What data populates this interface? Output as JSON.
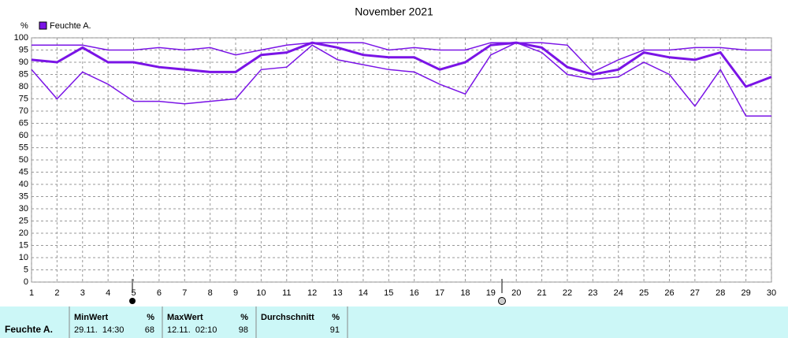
{
  "chart_data": {
    "type": "line",
    "title": "November 2021",
    "y_label": "%",
    "x": [
      1,
      2,
      3,
      4,
      5,
      6,
      7,
      8,
      9,
      10,
      11,
      12,
      13,
      14,
      15,
      16,
      17,
      18,
      19,
      20,
      21,
      22,
      23,
      24,
      25,
      26,
      27,
      28,
      29,
      30
    ],
    "xlim": [
      1,
      30
    ],
    "xticks": [
      1,
      2,
      3,
      4,
      5,
      6,
      7,
      8,
      9,
      10,
      11,
      12,
      13,
      14,
      15,
      16,
      17,
      18,
      19,
      20,
      21,
      22,
      23,
      24,
      25,
      26,
      27,
      28,
      29,
      30
    ],
    "ylim": [
      0,
      100
    ],
    "yticks": [
      0,
      5,
      10,
      15,
      20,
      25,
      30,
      35,
      40,
      45,
      50,
      55,
      60,
      65,
      70,
      75,
      80,
      85,
      90,
      95,
      100
    ],
    "grid": true,
    "series": [
      {
        "name": "Feuchte A.",
        "color": "#7a14e6",
        "max": [
          97,
          97,
          97,
          95,
          95,
          96,
          95,
          96,
          93,
          95,
          97,
          98,
          98,
          98,
          95,
          96,
          95,
          95,
          98,
          98,
          98,
          97,
          86,
          91,
          95,
          95,
          96,
          96,
          95,
          95
        ],
        "mean": [
          91,
          90,
          96,
          90,
          90,
          88,
          87,
          86,
          86,
          93,
          94,
          98,
          96,
          93,
          92,
          92,
          87,
          90,
          97,
          98,
          96,
          88,
          85,
          87,
          94,
          92,
          91,
          94,
          80,
          84
        ],
        "min": [
          87,
          75,
          86,
          81,
          74,
          74,
          73,
          74,
          75,
          87,
          88,
          97,
          91,
          89,
          87,
          86,
          81,
          77,
          93,
          98,
          94,
          85,
          83,
          84,
          90,
          85,
          72,
          87,
          68,
          68
        ]
      }
    ]
  },
  "stats": {
    "row_label": "Feuchte A.",
    "columns": [
      {
        "header": "MinWert",
        "unit": "%",
        "time": "29.11.  14:30",
        "value": 68
      },
      {
        "header": "MaxWert",
        "unit": "%",
        "time": "12.11.  02:10",
        "value": 98
      },
      {
        "header": "Durchschnitt",
        "unit": "%",
        "value": 91
      }
    ]
  }
}
